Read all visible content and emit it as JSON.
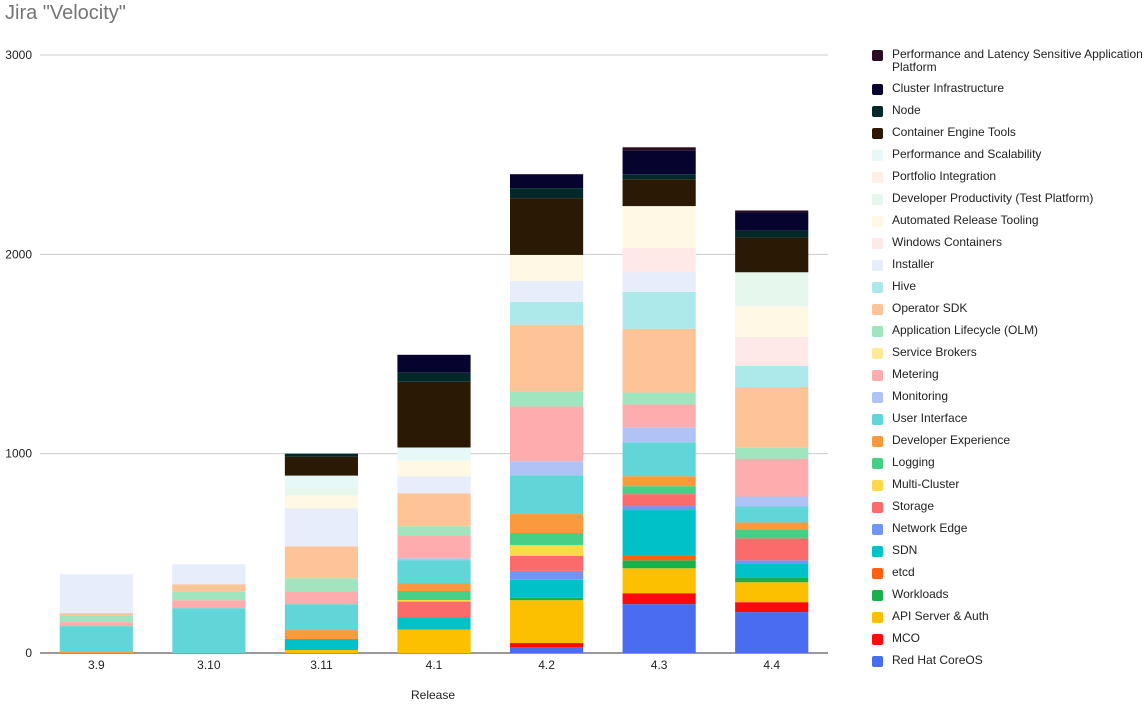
{
  "chart_data": {
    "type": "bar",
    "stacked": true,
    "title": "Jira \"Velocity\"",
    "xlabel": "Release",
    "ylabel": "",
    "ylim": [
      0,
      3000
    ],
    "yticks": [
      0,
      1000,
      2000,
      3000
    ],
    "grid": true,
    "legend_position": "right",
    "categories": [
      "3.9",
      "3.10",
      "3.11",
      "4.1",
      "4.2",
      "4.3",
      "4.4"
    ],
    "series": [
      {
        "name": "Red Hat CoreOS",
        "color": "#4a6cf0",
        "values": [
          0,
          0,
          0,
          0,
          30,
          245,
          205
        ]
      },
      {
        "name": "MCO",
        "color": "#ff0a0a",
        "values": [
          0,
          0,
          0,
          0,
          20,
          55,
          50
        ]
      },
      {
        "name": "API Server & Auth",
        "color": "#fcc000",
        "values": [
          0,
          0,
          15,
          118,
          215,
          125,
          100
        ]
      },
      {
        "name": "Workloads",
        "color": "#18b04a",
        "values": [
          0,
          0,
          0,
          0,
          12,
          40,
          25
        ]
      },
      {
        "name": "etcd",
        "color": "#ff6010",
        "values": [
          0,
          0,
          5,
          0,
          0,
          22,
          0
        ]
      },
      {
        "name": "SDN",
        "color": "#00c0c8",
        "values": [
          0,
          0,
          50,
          60,
          90,
          230,
          70
        ]
      },
      {
        "name": "Network Edge",
        "color": "#7294f2",
        "values": [
          0,
          0,
          0,
          0,
          45,
          20,
          15
        ]
      },
      {
        "name": "Storage",
        "color": "#fb6b6b",
        "values": [
          0,
          0,
          0,
          80,
          75,
          60,
          110
        ]
      },
      {
        "name": "Multi-Cluster",
        "color": "#fdd848",
        "values": [
          0,
          0,
          0,
          8,
          55,
          0,
          0
        ]
      },
      {
        "name": "Logging",
        "color": "#47cf86",
        "values": [
          0,
          0,
          0,
          45,
          60,
          40,
          45
        ]
      },
      {
        "name": "Developer Experience",
        "color": "#fb993f",
        "values": [
          5,
          0,
          45,
          40,
          95,
          50,
          35
        ]
      },
      {
        "name": "User Interface",
        "color": "#60d6d9",
        "values": [
          130,
          225,
          130,
          115,
          195,
          170,
          80
        ]
      },
      {
        "name": "Monitoring",
        "color": "#afc3f6",
        "values": [
          0,
          0,
          0,
          10,
          70,
          75,
          50
        ]
      },
      {
        "name": "Metering",
        "color": "#fdadad",
        "values": [
          20,
          40,
          65,
          115,
          275,
          115,
          190
        ]
      },
      {
        "name": "Service Brokers",
        "color": "#feeb9a",
        "values": [
          0,
          0,
          0,
          0,
          0,
          0,
          0
        ]
      },
      {
        "name": "Application Lifecycle (OLM)",
        "color": "#9fe5be",
        "values": [
          35,
          45,
          65,
          45,
          75,
          60,
          55
        ]
      },
      {
        "name": "Operator SDK",
        "color": "#fec397",
        "values": [
          10,
          35,
          160,
          165,
          335,
          320,
          305
        ]
      },
      {
        "name": "Hive",
        "color": "#ade9ea",
        "values": [
          0,
          0,
          0,
          0,
          115,
          185,
          105
        ]
      },
      {
        "name": "Installer",
        "color": "#e7edfa",
        "values": [
          195,
          100,
          190,
          85,
          105,
          100,
          0
        ]
      },
      {
        "name": "Windows Containers",
        "color": "#fee8e8",
        "values": [
          0,
          0,
          0,
          0,
          0,
          120,
          145
        ]
      },
      {
        "name": "Automated Release Tooling",
        "color": "#fef8e5",
        "values": [
          0,
          0,
          65,
          80,
          130,
          210,
          155
        ]
      },
      {
        "name": "Developer Productivity (Test Platform)",
        "color": "#e6f7ee",
        "values": [
          0,
          0,
          40,
          0,
          0,
          0,
          170
        ]
      },
      {
        "name": "Portfolio Integration",
        "color": "#fef0e6",
        "values": [
          0,
          0,
          0,
          0,
          0,
          0,
          0
        ]
      },
      {
        "name": "Performance and Scalability",
        "color": "#e7f8f9",
        "values": [
          0,
          0,
          60,
          65,
          0,
          0,
          0
        ]
      },
      {
        "name": "Container Engine Tools",
        "color": "#2a1a05",
        "values": [
          0,
          0,
          95,
          330,
          285,
          135,
          175
        ]
      },
      {
        "name": "Node",
        "color": "#022828",
        "values": [
          0,
          0,
          15,
          45,
          50,
          25,
          35
        ]
      },
      {
        "name": "Cluster Infrastructure",
        "color": "#06032f",
        "values": [
          0,
          0,
          0,
          90,
          70,
          120,
          90
        ]
      },
      {
        "name": "Performance and Latency Sensitive Application Platform",
        "color": "#2a0d22",
        "values": [
          0,
          0,
          0,
          0,
          0,
          15,
          10
        ]
      }
    ]
  }
}
